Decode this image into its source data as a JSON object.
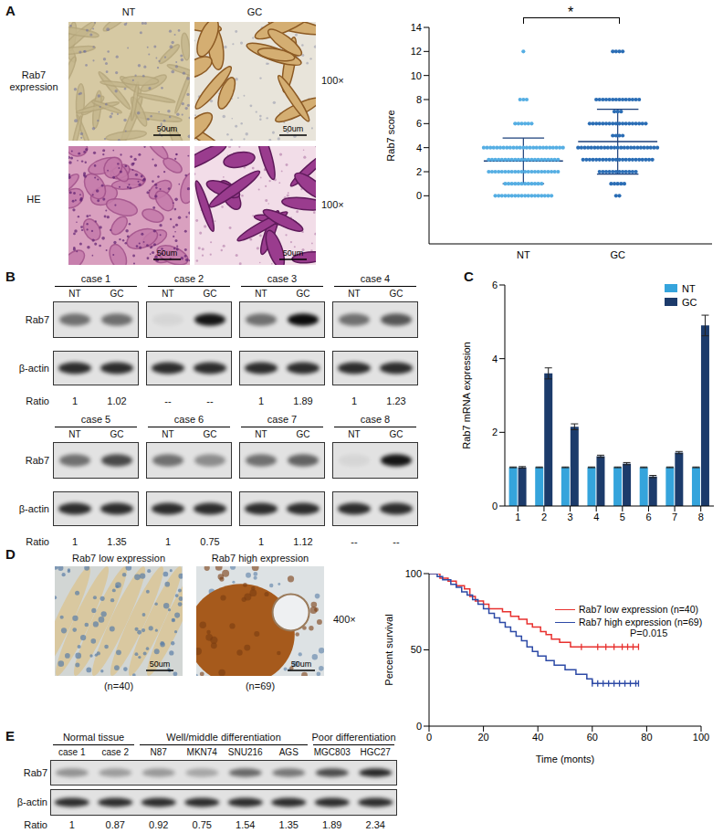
{
  "panel_labels": [
    "A",
    "B",
    "C",
    "D",
    "E"
  ],
  "micrographs_A": {
    "columns": [
      "NT",
      "GC"
    ],
    "rows": [
      "Rab7 expression",
      "HE"
    ],
    "magnification": "100×",
    "scale_bar": "50um"
  },
  "blot_B": {
    "rows": [
      "Rab7",
      "β-actin"
    ],
    "ratio_label": "Ratio",
    "lanes": [
      "NT",
      "GC"
    ],
    "cases": [
      {
        "name": "case 1",
        "ratios": [
          1,
          1.02
        ]
      },
      {
        "name": "case 2",
        "ratios": [
          "--",
          "--"
        ]
      },
      {
        "name": "case 3",
        "ratios": [
          1,
          1.89
        ]
      },
      {
        "name": "case 4",
        "ratios": [
          1,
          1.23
        ]
      },
      {
        "name": "case 5",
        "ratios": [
          1,
          1.35
        ]
      },
      {
        "name": "case 6",
        "ratios": [
          1,
          0.75
        ]
      },
      {
        "name": "case 7",
        "ratios": [
          1,
          1.12
        ]
      },
      {
        "name": "case 8",
        "ratios": [
          "--",
          "--"
        ]
      }
    ]
  },
  "micrographs_D": {
    "panels": [
      {
        "label": "Rab7 low expression",
        "n": "(n=40)"
      },
      {
        "label": "Rab7 high expression",
        "n": "(n=69)"
      }
    ],
    "magnification": "400×",
    "scale_bar": "50um"
  },
  "blot_E": {
    "rows": [
      "Rab7",
      "β-actin"
    ],
    "ratio_label": "Ratio",
    "groups": [
      {
        "name": "Normal tissue",
        "lanes": [
          "case 1",
          "case 2"
        ]
      },
      {
        "name": "Well/middle differentiation",
        "lanes": [
          "N87",
          "MKN74",
          "SNU216",
          "AGS"
        ]
      },
      {
        "name": "Poor differentiation",
        "lanes": [
          "MGC803",
          "HGC27"
        ]
      }
    ],
    "ratios": [
      1,
      0.87,
      0.92,
      0.75,
      1.54,
      1.35,
      1.89,
      2.34
    ]
  },
  "chart_data": [
    {
      "type": "scatter",
      "y_label": "Rab7 score",
      "categories": [
        "NT",
        "GC"
      ],
      "colors": [
        "#55aee3",
        "#2a6db5"
      ],
      "values": [
        [
          12,
          8,
          8,
          8,
          6,
          6,
          6,
          6,
          6,
          6,
          4,
          4,
          4,
          4,
          4,
          4,
          4,
          4,
          4,
          4,
          4,
          4,
          4,
          4,
          4,
          4,
          4,
          4,
          4,
          4,
          4,
          4,
          4,
          4,
          4,
          3,
          3,
          3,
          3,
          3,
          3,
          3,
          3,
          3,
          3,
          3,
          3,
          3,
          3,
          3,
          3,
          3,
          3,
          3,
          3,
          3,
          3,
          2,
          2,
          2,
          2,
          2,
          2,
          2,
          2,
          2,
          2,
          2,
          2,
          2,
          2,
          2,
          2,
          2,
          2,
          2,
          2,
          2,
          2,
          1,
          1,
          1,
          1,
          1,
          1,
          1,
          1,
          1,
          1,
          1,
          1,
          0,
          0,
          0,
          0,
          0,
          0,
          0,
          0,
          0,
          0,
          0,
          0,
          0,
          0,
          0,
          0,
          0,
          0
        ],
        [
          12,
          12,
          12,
          12,
          8,
          8,
          8,
          8,
          8,
          8,
          8,
          8,
          8,
          8,
          8,
          8,
          8,
          8,
          7,
          7,
          7,
          6,
          6,
          6,
          6,
          6,
          6,
          6,
          6,
          6,
          6,
          6,
          6,
          6,
          6,
          6,
          6,
          6,
          6,
          5,
          5,
          5,
          5,
          4,
          4,
          4,
          4,
          4,
          4,
          4,
          4,
          4,
          4,
          4,
          4,
          4,
          4,
          4,
          4,
          4,
          4,
          4,
          4,
          4,
          4,
          4,
          4,
          4,
          3,
          3,
          3,
          3,
          3,
          3,
          3,
          3,
          3,
          3,
          3,
          3,
          3,
          3,
          3,
          3,
          3,
          3,
          3,
          3,
          3,
          3,
          2,
          2,
          2,
          2,
          2,
          2,
          2,
          2,
          2,
          2,
          2,
          2,
          1,
          1,
          1,
          1,
          1,
          0,
          0
        ]
      ],
      "mean": [
        2.9,
        4.5
      ],
      "sd": [
        1.9,
        2.7
      ],
      "ylim": [
        -4,
        14
      ],
      "yticks": [
        0,
        2,
        4,
        6,
        8,
        10,
        12,
        14
      ],
      "annotations": [
        "*"
      ]
    },
    {
      "type": "bar",
      "y_label": "Rab7 mRNA expression",
      "categories": [
        "1",
        "2",
        "3",
        "4",
        "5",
        "6",
        "7",
        "8"
      ],
      "ylim": [
        0,
        6
      ],
      "yticks": [
        0,
        2,
        4,
        6
      ],
      "legend": "upper right",
      "series": [
        {
          "name": "NT",
          "color": "#35a4dc",
          "values": [
            1.05,
            1.05,
            1.05,
            1.05,
            1.05,
            1.05,
            1.05,
            1.05
          ],
          "errors": [
            0.01,
            0.01,
            0.01,
            0.01,
            0.01,
            0.01,
            0.01,
            0.01
          ]
        },
        {
          "name": "GC",
          "color": "#1c3b6b",
          "values": [
            1.05,
            3.6,
            2.15,
            1.35,
            1.15,
            0.8,
            1.45,
            4.9
          ],
          "errors": [
            0.02,
            0.15,
            0.08,
            0.03,
            0.03,
            0.03,
            0.03,
            0.28
          ]
        }
      ]
    },
    {
      "type": "line",
      "line_style": "step",
      "x_label": "Time (monts)",
      "y_label": "Percent survival",
      "xlim": [
        0,
        100
      ],
      "xticks": [
        0,
        20,
        40,
        60,
        80,
        100
      ],
      "ylim": [
        0,
        100
      ],
      "yticks": [
        0,
        50,
        100
      ],
      "legend": "upper right",
      "annotations": [
        "P=0.015"
      ],
      "series": [
        {
          "name": "Rab7 low expression (n=40)",
          "color": "#e8312f",
          "x": [
            0,
            4,
            7,
            10,
            13,
            15,
            17,
            20,
            22,
            27,
            30,
            33,
            36,
            38,
            41,
            43,
            45,
            48,
            52,
            77
          ],
          "values": [
            100,
            97,
            95,
            92,
            90,
            85,
            82,
            80,
            77,
            75,
            72,
            70,
            67,
            65,
            62,
            60,
            57,
            55,
            52,
            52
          ],
          "censored": [
            56,
            62,
            65,
            68,
            71,
            73,
            75,
            77
          ]
        },
        {
          "name": "Rab7 high expression (n=69)",
          "color": "#2d4aa6",
          "x": [
            0,
            3,
            5,
            8,
            10,
            12,
            14,
            16,
            18,
            20,
            22,
            24,
            26,
            28,
            30,
            32,
            34,
            36,
            38,
            40,
            43,
            46,
            50,
            54,
            58,
            60,
            77
          ],
          "values": [
            100,
            98,
            96,
            93,
            91,
            88,
            86,
            83,
            80,
            77,
            74,
            71,
            68,
            65,
            62,
            59,
            56,
            52,
            49,
            46,
            43,
            40,
            37,
            34,
            31,
            28,
            28
          ],
          "censored": [
            60,
            62,
            64,
            66,
            68,
            70,
            72,
            74,
            76,
            77
          ]
        }
      ]
    }
  ]
}
